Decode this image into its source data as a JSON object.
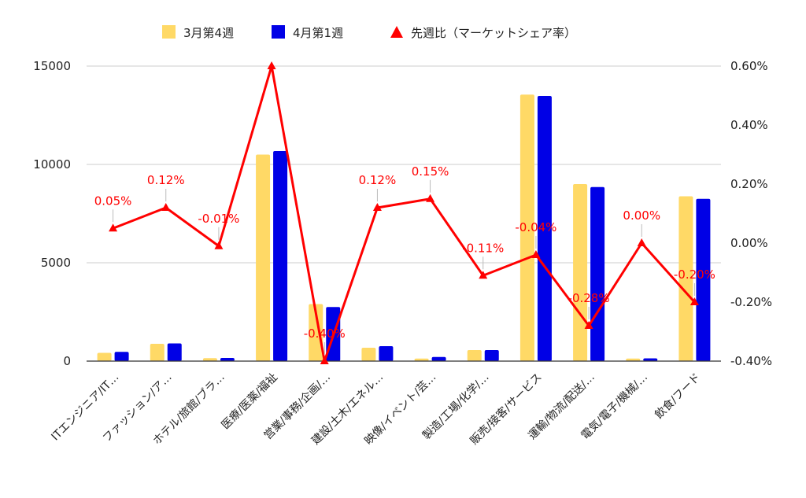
{
  "chart_data": {
    "type": "bar",
    "categories": [
      "ITエンジニア/IT…",
      "ファッション/ア…",
      "ホテル/旅館/ブラ…",
      "医療/医薬/福祉",
      "営業/事務/企画/…",
      "建設/土木/エネル…",
      "映像/イベント/芸…",
      "製造/工場/化学/…",
      "販売/接客/サービス",
      "運輸/物流/配送/…",
      "電気/電子/機械/…",
      "飲食/フード"
    ],
    "series": [
      {
        "name": "3月第4週",
        "type": "bar",
        "axis": "left",
        "color": "#ffd966",
        "values": [
          420,
          880,
          150,
          10500,
          2900,
          680,
          130,
          560,
          13550,
          9000,
          130,
          8380
        ]
      },
      {
        "name": "4月第1週",
        "type": "bar",
        "axis": "left",
        "color": "#0000e6",
        "values": [
          470,
          900,
          160,
          10680,
          2750,
          760,
          210,
          560,
          13480,
          8850,
          140,
          8250
        ]
      },
      {
        "name": "先週比（マーケットシェア率）",
        "type": "line",
        "axis": "right",
        "color": "#ff0000",
        "values": [
          0.05,
          0.12,
          -0.01,
          0.6,
          -0.4,
          0.12,
          0.15,
          -0.11,
          -0.04,
          -0.28,
          0.0,
          -0.2
        ],
        "labels": [
          "0.05%",
          "0.12%",
          "-0.01%",
          "",
          "-0.40%",
          "0.12%",
          "0.15%",
          "-0.11%",
          "-0.04%",
          "-0.28%",
          "0.00%",
          "-0.20%"
        ]
      }
    ],
    "y_left": {
      "min": 0,
      "max": 15000,
      "ticks": [
        "0",
        "5000",
        "10000",
        "15000"
      ],
      "tick_values": [
        0,
        5000,
        10000,
        15000
      ]
    },
    "y_right": {
      "min": -0.4,
      "max": 0.6,
      "ticks": [
        "-0.40%",
        "-0.20%",
        "0.00%",
        "0.20%",
        "0.40%",
        "0.60%"
      ],
      "tick_values": [
        -0.4,
        -0.2,
        0.0,
        0.2,
        0.4,
        0.6
      ]
    },
    "grid": true,
    "legend_position": "top-center"
  }
}
